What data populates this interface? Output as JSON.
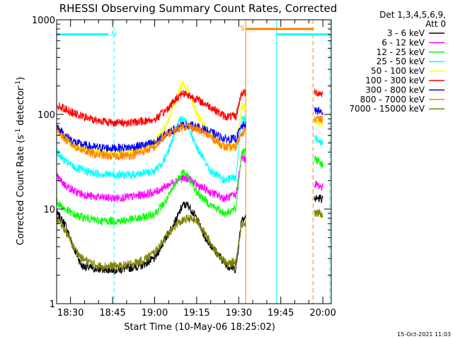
{
  "chart_data": {
    "type": "line",
    "title": "RHESSI Observing Summary Count Rates, Corrected",
    "xlabel": "Start Time (10-May-06 18:25:02)",
    "ylabel_parts": [
      "Corrected Count Rate (s",
      "-1",
      " detector",
      "-1",
      ")"
    ],
    "y_scale": "log",
    "ylim": [
      1,
      1000
    ],
    "y_ticks": [
      {
        "value": 1,
        "label": "1"
      },
      {
        "value": 10,
        "label": "10"
      },
      {
        "value": 100,
        "label": "100"
      },
      {
        "value": 1000,
        "label": "1000"
      }
    ],
    "x_range": [
      "18:25:02",
      "20:03:00"
    ],
    "x_ticks": [
      {
        "value": "18:30",
        "label": "18:30"
      },
      {
        "value": "18:45",
        "label": "18:45"
      },
      {
        "value": "19:00",
        "label": "19:00"
      },
      {
        "value": "19:15",
        "label": "19:15"
      },
      {
        "value": "19:30",
        "label": "19:30"
      },
      {
        "value": "19:45",
        "label": "19:45"
      },
      {
        "value": "20:00",
        "label": "20:00"
      }
    ],
    "legend_header": [
      "Det 1,3,4,5,6,9,",
      "Att 0"
    ],
    "legend_position": "right",
    "series": [
      {
        "name": "3 - 6 keV",
        "color": "#000000",
        "points": [
          [
            "18:25:02",
            9
          ],
          [
            "18:28",
            7
          ],
          [
            "18:31",
            4
          ],
          [
            "18:34",
            2.5
          ],
          [
            "18:40",
            2.3
          ],
          [
            "18:48",
            2.3
          ],
          [
            "18:55",
            2.5
          ],
          [
            "19:00",
            3
          ],
          [
            "19:04",
            5
          ],
          [
            "19:08",
            8
          ],
          [
            "19:10",
            11
          ],
          [
            "19:12",
            11
          ],
          [
            "19:15",
            8
          ],
          [
            "19:18",
            5
          ],
          [
            "19:22",
            3.5
          ],
          [
            "19:26",
            2.5
          ],
          [
            "19:29",
            2.3
          ],
          [
            "19:31",
            8
          ],
          [
            "19:58",
            13
          ],
          [
            "20:00",
            13
          ]
        ]
      },
      {
        "name": "6 - 12 keV",
        "color": "#ff00ff",
        "points": [
          [
            "18:25:02",
            22
          ],
          [
            "18:28",
            18
          ],
          [
            "18:32",
            15
          ],
          [
            "18:38",
            13.5
          ],
          [
            "18:45",
            13
          ],
          [
            "18:52",
            13.5
          ],
          [
            "19:00",
            15
          ],
          [
            "19:05",
            18
          ],
          [
            "19:09",
            21
          ],
          [
            "19:12",
            21
          ],
          [
            "19:15",
            18
          ],
          [
            "19:20",
            15
          ],
          [
            "19:25",
            13
          ],
          [
            "19:29",
            14
          ],
          [
            "19:31",
            35
          ],
          [
            "19:58",
            18
          ],
          [
            "20:00",
            17
          ]
        ]
      },
      {
        "name": "12 - 25 keV",
        "color": "#00ff00",
        "points": [
          [
            "18:25:02",
            12
          ],
          [
            "18:28",
            10
          ],
          [
            "18:32",
            8.5
          ],
          [
            "18:40",
            7.5
          ],
          [
            "18:48",
            7.5
          ],
          [
            "18:55",
            8
          ],
          [
            "19:00",
            9
          ],
          [
            "19:04",
            12
          ],
          [
            "19:08",
            20
          ],
          [
            "19:10",
            25
          ],
          [
            "19:12",
            22
          ],
          [
            "19:15",
            15
          ],
          [
            "19:20",
            11
          ],
          [
            "19:25",
            9
          ],
          [
            "19:29",
            10
          ],
          [
            "19:31",
            40
          ],
          [
            "19:58",
            33
          ],
          [
            "20:00",
            30
          ]
        ]
      },
      {
        "name": "25 - 50 keV",
        "color": "#00ffff",
        "points": [
          [
            "18:25:02",
            40
          ],
          [
            "18:28",
            32
          ],
          [
            "18:32",
            27
          ],
          [
            "18:38",
            24
          ],
          [
            "18:45",
            23
          ],
          [
            "18:52",
            23
          ],
          [
            "19:00",
            25
          ],
          [
            "19:04",
            35
          ],
          [
            "19:08",
            75
          ],
          [
            "19:10",
            95
          ],
          [
            "19:12",
            75
          ],
          [
            "19:15",
            45
          ],
          [
            "19:20",
            25
          ],
          [
            "19:25",
            20
          ],
          [
            "19:29",
            22
          ],
          [
            "19:31",
            90
          ],
          [
            "19:58",
            55
          ],
          [
            "20:00",
            50
          ]
        ]
      },
      {
        "name": "50 - 100 keV",
        "color": "#ffff00",
        "points": [
          [
            "18:25:02",
            70
          ],
          [
            "18:28",
            55
          ],
          [
            "18:32",
            45
          ],
          [
            "18:38",
            40
          ],
          [
            "18:45",
            38
          ],
          [
            "18:52",
            40
          ],
          [
            "19:00",
            50
          ],
          [
            "19:04",
            75
          ],
          [
            "19:08",
            150
          ],
          [
            "19:10",
            220
          ],
          [
            "19:12",
            180
          ],
          [
            "19:15",
            100
          ],
          [
            "19:20",
            60
          ],
          [
            "19:25",
            45
          ],
          [
            "19:29",
            45
          ],
          [
            "19:31",
            120
          ],
          [
            "19:58",
            85
          ],
          [
            "20:00",
            80
          ]
        ]
      },
      {
        "name": "100 - 300 keV",
        "color": "#ff0000",
        "points": [
          [
            "18:25:02",
            125
          ],
          [
            "18:28",
            115
          ],
          [
            "18:32",
            100
          ],
          [
            "18:38",
            88
          ],
          [
            "18:45",
            82
          ],
          [
            "18:52",
            82
          ],
          [
            "19:00",
            88
          ],
          [
            "19:04",
            110
          ],
          [
            "19:08",
            150
          ],
          [
            "19:10",
            170
          ],
          [
            "19:12",
            160
          ],
          [
            "19:15",
            145
          ],
          [
            "19:20",
            120
          ],
          [
            "19:25",
            95
          ],
          [
            "19:29",
            95
          ],
          [
            "19:31",
            170
          ],
          [
            "19:58",
            170
          ],
          [
            "20:00",
            165
          ]
        ]
      },
      {
        "name": "300 - 800 keV",
        "color": "#0000ff",
        "points": [
          [
            "18:25:02",
            75
          ],
          [
            "18:28",
            60
          ],
          [
            "18:32",
            50
          ],
          [
            "18:38",
            45
          ],
          [
            "18:45",
            44
          ],
          [
            "18:52",
            45
          ],
          [
            "19:00",
            50
          ],
          [
            "19:04",
            62
          ],
          [
            "19:08",
            72
          ],
          [
            "19:10",
            77
          ],
          [
            "19:12",
            78
          ],
          [
            "19:15",
            74
          ],
          [
            "19:20",
            65
          ],
          [
            "19:25",
            55
          ],
          [
            "19:29",
            55
          ],
          [
            "19:31",
            75
          ],
          [
            "19:58",
            110
          ],
          [
            "20:00",
            105
          ]
        ]
      },
      {
        "name": "800 - 7000 keV",
        "color": "#ff8000",
        "points": [
          [
            "18:25:02",
            70
          ],
          [
            "18:28",
            55
          ],
          [
            "18:32",
            45
          ],
          [
            "18:38",
            38
          ],
          [
            "18:45",
            36
          ],
          [
            "18:52",
            37
          ],
          [
            "19:00",
            45
          ],
          [
            "19:04",
            60
          ],
          [
            "19:08",
            70
          ],
          [
            "19:10",
            74
          ],
          [
            "19:12",
            75
          ],
          [
            "19:15",
            70
          ],
          [
            "19:20",
            58
          ],
          [
            "19:25",
            45
          ],
          [
            "19:29",
            45
          ],
          [
            "19:31",
            65
          ],
          [
            "19:58",
            90
          ],
          [
            "20:00",
            88
          ]
        ]
      },
      {
        "name": "7000 - 15000 keV",
        "color": "#808000",
        "points": [
          [
            "18:25:02",
            8
          ],
          [
            "18:28",
            6
          ],
          [
            "18:31",
            4
          ],
          [
            "18:34",
            3
          ],
          [
            "18:40",
            2.5
          ],
          [
            "18:48",
            2.5
          ],
          [
            "18:55",
            2.8
          ],
          [
            "19:00",
            3.5
          ],
          [
            "19:04",
            5
          ],
          [
            "19:08",
            7
          ],
          [
            "19:12",
            8
          ],
          [
            "19:15",
            7.5
          ],
          [
            "19:18",
            5.5
          ],
          [
            "19:22",
            3.5
          ],
          [
            "19:26",
            2.6
          ],
          [
            "19:29",
            2.8
          ],
          [
            "19:31",
            7
          ],
          [
            "19:58",
            9
          ],
          [
            "20:00",
            9
          ]
        ]
      }
    ],
    "flags": [
      {
        "label": "N",
        "color": "#00ffff",
        "y": 700,
        "bar": [
          "18:25:02",
          "18:43:30"
        ],
        "label_at": "18:44:30"
      },
      {
        "label": "S",
        "color": "#ff8000",
        "y": 800,
        "bar": [
          "19:32:30",
          "19:56:30"
        ],
        "label_at": "19:30:30"
      },
      {
        "label": "",
        "color": "#00ffff",
        "y": 700,
        "bar": [
          "19:43:30",
          "20:02:30"
        ],
        "label_at": ""
      }
    ],
    "vlines": [
      {
        "t": "18:25:02",
        "color": "#00ffff",
        "style": "solid"
      },
      {
        "t": "18:45:30",
        "color": "#00ffff",
        "style": "dashed"
      },
      {
        "t": "19:32:30",
        "color": "#ff8000",
        "style": "solid"
      },
      {
        "t": "19:43:30",
        "color": "#00ffff",
        "style": "solid"
      },
      {
        "t": "19:56:30",
        "color": "#ff8000",
        "style": "dashed"
      },
      {
        "t": "20:02:30",
        "color": "#00ffff",
        "style": "dashed"
      }
    ],
    "gaps": [
      [
        "19:32:30",
        "19:57:00"
      ]
    ]
  },
  "footer": {
    "timestamp": "15-Oct-2021 11:03"
  }
}
